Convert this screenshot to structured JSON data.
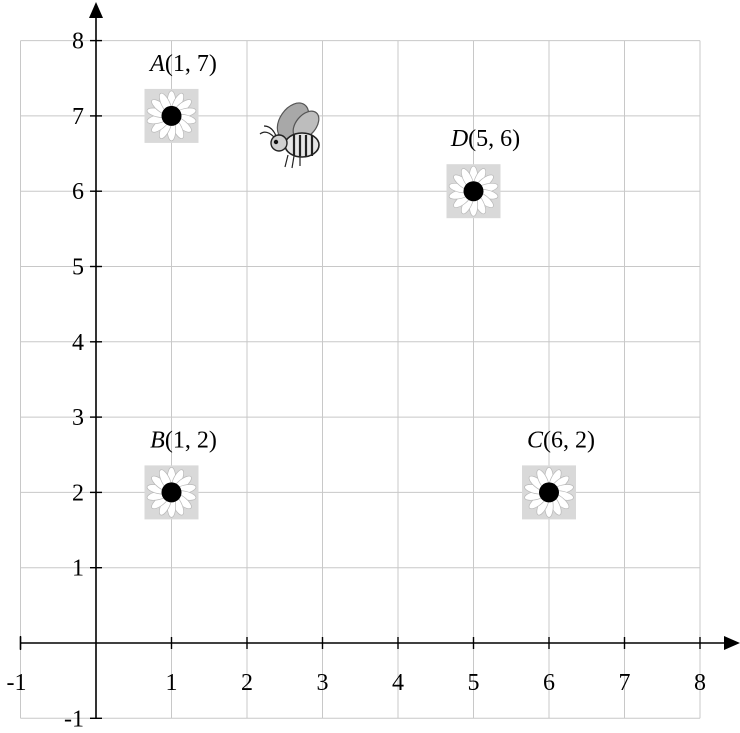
{
  "chart_data": {
    "type": "scatter",
    "xlim": [
      -1,
      8
    ],
    "ylim": [
      -1,
      8
    ],
    "grid": true,
    "x_ticks": [
      -1,
      1,
      2,
      3,
      4,
      5,
      6,
      7,
      8
    ],
    "y_ticks": [
      -1,
      1,
      2,
      3,
      4,
      5,
      6,
      7,
      8
    ],
    "points": [
      {
        "letter": "A",
        "coords": "(1, 7)",
        "x": 1,
        "y": 7,
        "icon": "daisy-flower-icon"
      },
      {
        "letter": "B",
        "coords": "(1, 2)",
        "x": 1,
        "y": 2,
        "icon": "daisy-flower-icon"
      },
      {
        "letter": "C",
        "coords": "(6, 2)",
        "x": 6,
        "y": 2,
        "icon": "daisy-flower-icon"
      },
      {
        "letter": "D",
        "coords": "(5, 6)",
        "x": 5,
        "y": 6,
        "icon": "daisy-flower-icon"
      }
    ],
    "decoration": {
      "icon": "bee-icon"
    },
    "colors": {
      "grid": "#c8c8c8",
      "point": "#000000",
      "flower_bg": "#d9d9d9",
      "axis": "#000000"
    }
  }
}
